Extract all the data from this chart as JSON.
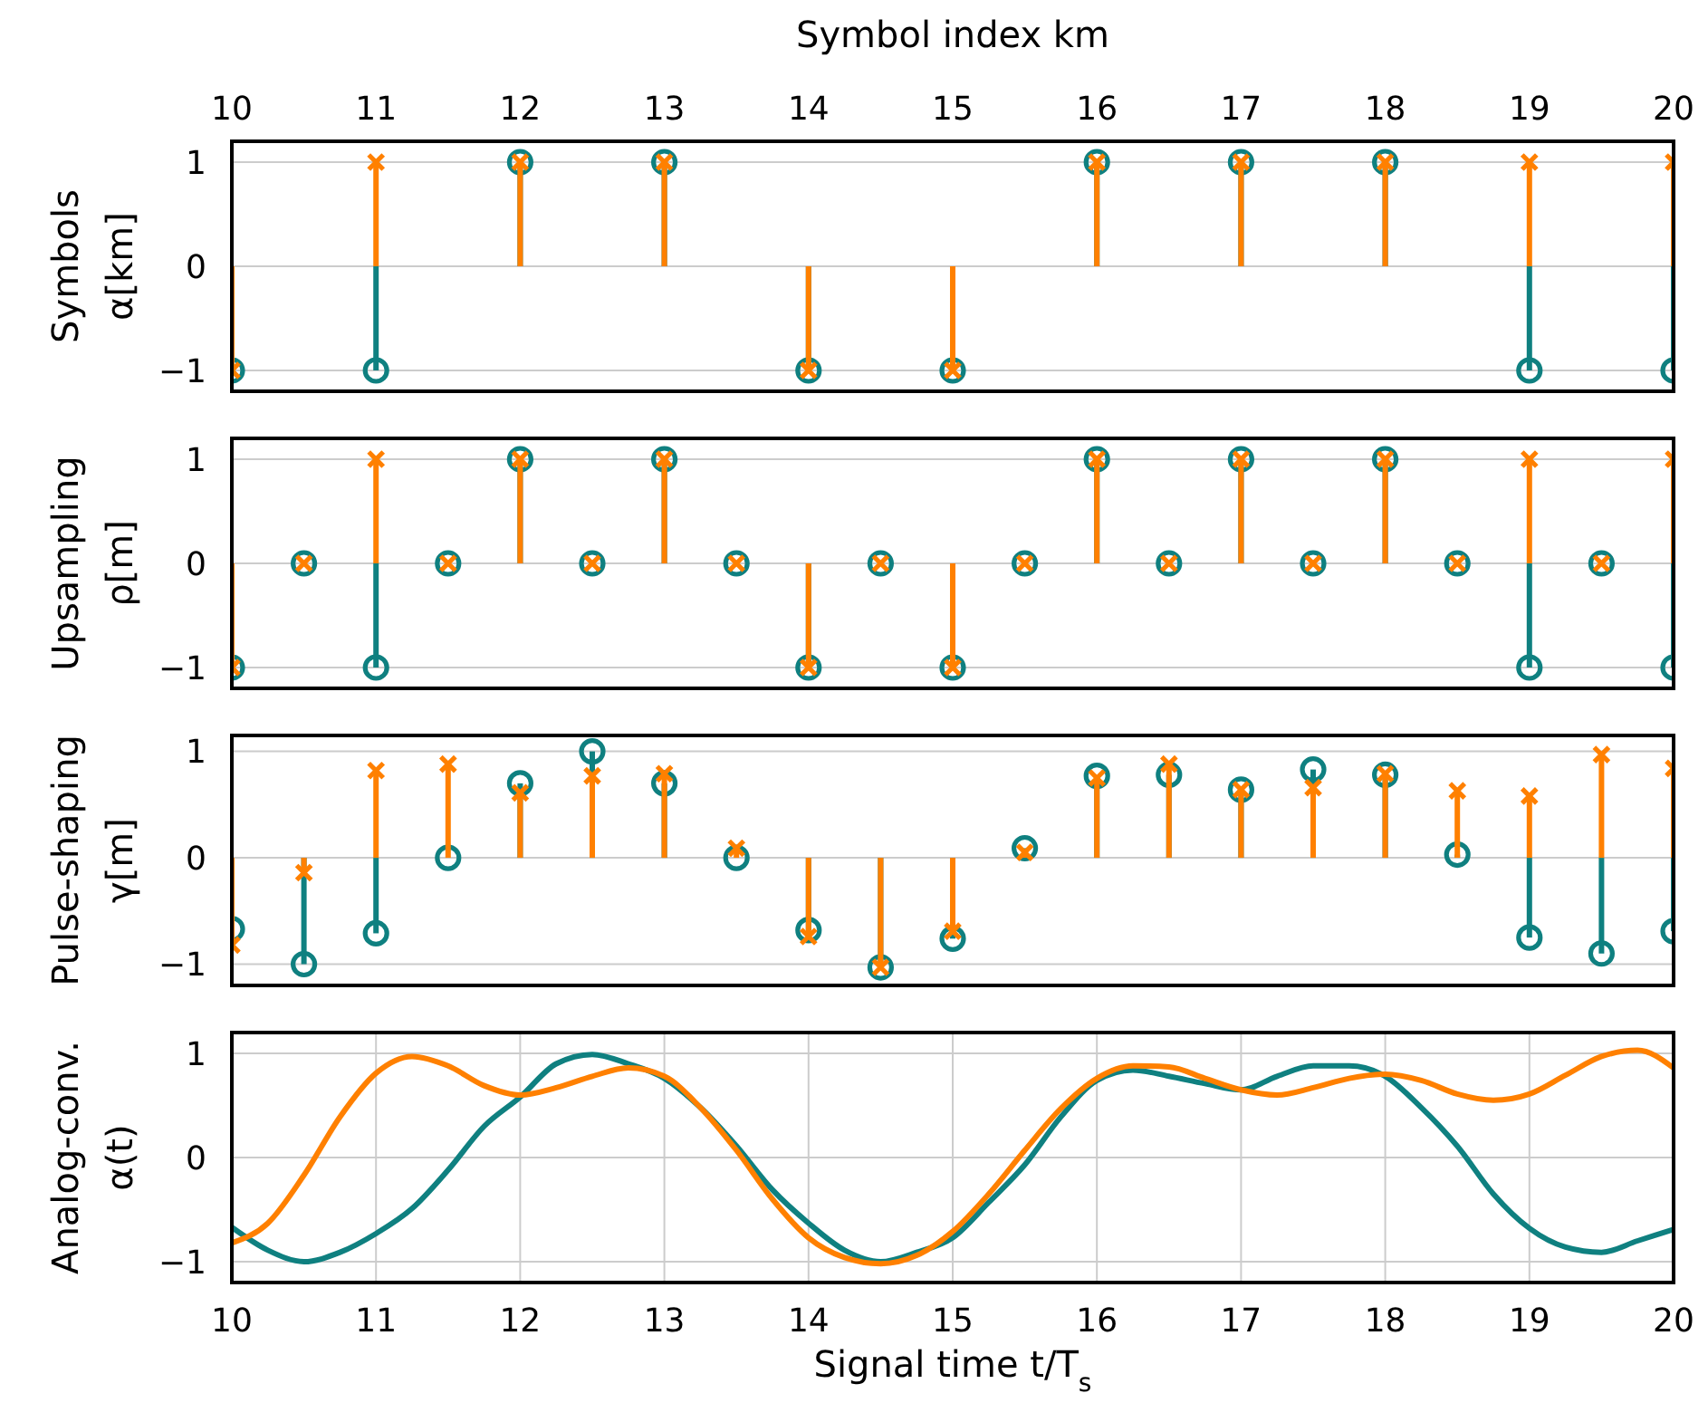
{
  "chart_data": [
    {
      "type": "lollipop",
      "ylabel": "Symbols\nα[km]",
      "x2label": "Symbol index km",
      "x": [
        10,
        11,
        12,
        13,
        14,
        15,
        16,
        17,
        18,
        19,
        20
      ],
      "xlim": [
        10,
        20
      ],
      "xticks": [
        10,
        11,
        12,
        13,
        14,
        15,
        16,
        17,
        18,
        19,
        20
      ],
      "x2lim": [
        10,
        20
      ],
      "x2ticks": [
        10,
        11,
        12,
        13,
        14,
        15,
        16,
        17,
        18,
        19,
        20
      ],
      "ylim": [
        -1.2,
        1.2
      ],
      "yticks": [
        -1,
        0,
        1
      ],
      "grid": true,
      "tick_labels": "y",
      "series": [
        {
          "color": "#0f8080",
          "marker": "circle",
          "values": [
            -1,
            -1,
            1,
            1,
            -1,
            -1,
            1,
            1,
            1,
            -1,
            -1
          ]
        },
        {
          "color": "#ff8000",
          "marker": "cross",
          "values": [
            -1,
            1,
            1,
            1,
            -1,
            -1,
            1,
            1,
            1,
            1,
            1
          ]
        }
      ]
    },
    {
      "type": "lollipop",
      "ylabel": "Upsampling\nρ[m]",
      "x": [
        10,
        10.5,
        11,
        11.5,
        12,
        12.5,
        13,
        13.5,
        14,
        14.5,
        15,
        15.5,
        16,
        16.5,
        17,
        17.5,
        18,
        18.5,
        19,
        19.5,
        20
      ],
      "xlim": [
        10,
        20
      ],
      "xticks": [
        10,
        11,
        12,
        13,
        14,
        15,
        16,
        17,
        18,
        19,
        20
      ],
      "ylim": [
        -1.2,
        1.2
      ],
      "yticks": [
        -1,
        0,
        1
      ],
      "grid": true,
      "tick_labels": "y",
      "series": [
        {
          "color": "#0f8080",
          "marker": "circle",
          "values": [
            -1,
            0,
            -1,
            0,
            1,
            0,
            1,
            0,
            -1,
            0,
            -1,
            0,
            1,
            0,
            1,
            0,
            1,
            0,
            -1,
            0,
            -1
          ]
        },
        {
          "color": "#ff8000",
          "marker": "cross",
          "values": [
            -1,
            0,
            1,
            0,
            1,
            0,
            1,
            0,
            -1,
            0,
            -1,
            0,
            1,
            0,
            1,
            0,
            1,
            0,
            1,
            0,
            1
          ]
        }
      ]
    },
    {
      "type": "lollipop",
      "ylabel": "Pulse-shaping\nγ[m]",
      "x": [
        10,
        10.5,
        11,
        11.5,
        12,
        12.5,
        13,
        13.5,
        14,
        14.5,
        15,
        15.5,
        16,
        16.5,
        17,
        17.5,
        18,
        18.5,
        19,
        19.5,
        20
      ],
      "xlim": [
        10,
        20
      ],
      "xticks": [
        10,
        11,
        12,
        13,
        14,
        15,
        16,
        17,
        18,
        19,
        20
      ],
      "ylim": [
        -1.2,
        1.15
      ],
      "yticks": [
        -1,
        0,
        1
      ],
      "grid": true,
      "tick_labels": "y",
      "series": [
        {
          "color": "#0f8080",
          "marker": "circle",
          "values": [
            -0.67,
            -1.0,
            -0.71,
            0,
            0.7,
            1.0,
            0.7,
            0,
            -0.68,
            -1.03,
            -0.76,
            0.09,
            0.77,
            0.78,
            0.64,
            0.83,
            0.78,
            0.03,
            -0.75,
            -0.9,
            -0.69
          ]
        },
        {
          "color": "#ff8000",
          "marker": "cross",
          "values": [
            -0.82,
            -0.14,
            0.82,
            0.88,
            0.61,
            0.77,
            0.79,
            0.09,
            -0.74,
            -1.03,
            -0.69,
            0.05,
            0.75,
            0.88,
            0.64,
            0.66,
            0.79,
            0.63,
            0.58,
            0.97,
            0.84
          ]
        }
      ]
    },
    {
      "type": "line",
      "ylabel": "Analog-conv.\nα(t)",
      "xlabel": "Signal time t/T$_{s}$",
      "x": [
        10,
        10.25,
        10.5,
        10.75,
        11,
        11.25,
        11.5,
        11.75,
        12,
        12.25,
        12.5,
        12.75,
        13,
        13.25,
        13.5,
        13.75,
        14,
        14.25,
        14.5,
        14.75,
        15,
        15.25,
        15.5,
        15.75,
        16,
        16.25,
        16.5,
        16.75,
        17,
        17.25,
        17.5,
        17.75,
        18,
        18.25,
        18.5,
        18.75,
        19,
        19.25,
        19.5,
        19.75,
        20
      ],
      "xlim": [
        10,
        20
      ],
      "xticks": [
        10,
        11,
        12,
        13,
        14,
        15,
        16,
        17,
        18,
        19,
        20
      ],
      "ylim": [
        -1.2,
        1.2
      ],
      "yticks": [
        -1,
        0,
        1
      ],
      "grid": true,
      "marker": "none",
      "line_style": "solid",
      "series": [
        {
          "color": "#0f8080",
          "values": [
            -0.67,
            -0.89,
            -1.0,
            -0.91,
            -0.73,
            -0.49,
            -0.12,
            0.3,
            0.58,
            0.9,
            0.99,
            0.9,
            0.76,
            0.48,
            0.11,
            -0.31,
            -0.63,
            -0.89,
            -1.0,
            -0.91,
            -0.77,
            -0.43,
            -0.07,
            0.39,
            0.74,
            0.84,
            0.78,
            0.71,
            0.65,
            0.78,
            0.88,
            0.88,
            0.78,
            0.48,
            0.11,
            -0.35,
            -0.68,
            -0.86,
            -0.91,
            -0.8,
            -0.69
          ]
        },
        {
          "color": "#ff8000",
          "values": [
            -0.82,
            -0.63,
            -0.17,
            0.39,
            0.81,
            0.97,
            0.88,
            0.69,
            0.6,
            0.67,
            0.78,
            0.86,
            0.78,
            0.48,
            0.07,
            -0.4,
            -0.77,
            -0.96,
            -1.02,
            -0.94,
            -0.71,
            -0.35,
            0.07,
            0.47,
            0.76,
            0.88,
            0.87,
            0.76,
            0.65,
            0.6,
            0.67,
            0.76,
            0.8,
            0.74,
            0.61,
            0.55,
            0.61,
            0.79,
            0.97,
            1.03,
            0.86
          ]
        }
      ]
    }
  ]
}
